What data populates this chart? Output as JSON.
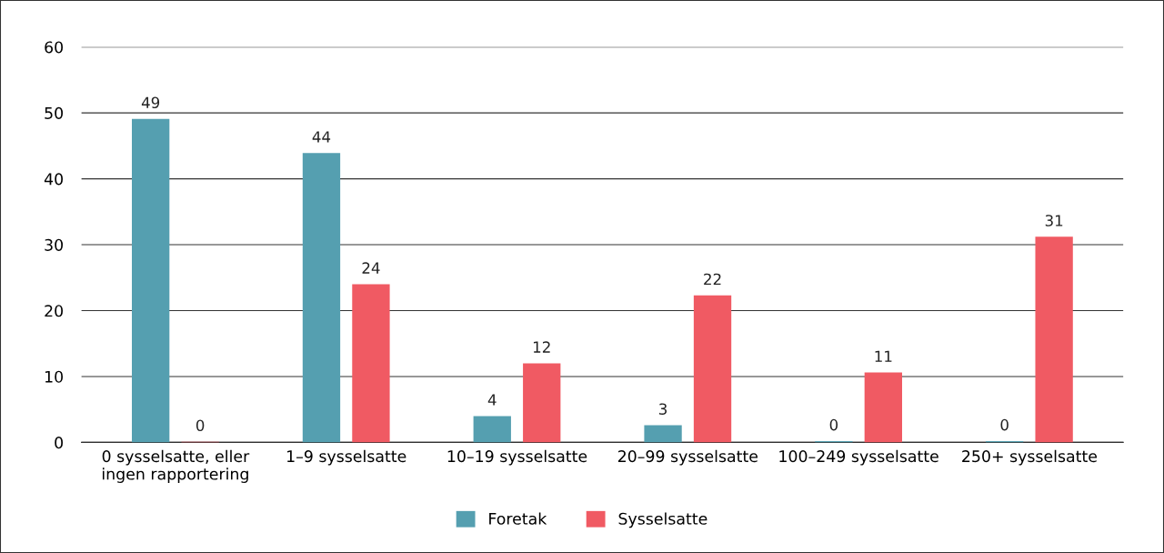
{
  "chart_data": {
    "type": "bar",
    "categories": [
      "0 sysselsatte, eller\ningen rapportering",
      "1–9 sysselsatte",
      "10–19 sysselsatte",
      "20–99 sysselsatte",
      "100–249 sysselsatte",
      "250+ sysselsatte"
    ],
    "series": [
      {
        "name": "Foretak",
        "color": "#559fb0",
        "values": [
          49.1,
          43.9,
          4.0,
          2.6,
          0.2,
          0.2
        ],
        "value_labels": [
          "49",
          "44",
          "4",
          "3",
          "0",
          "0"
        ]
      },
      {
        "name": "Sysselsatte",
        "color": "#f05a63",
        "values": [
          0.1,
          24.0,
          12.0,
          22.3,
          10.6,
          31.2
        ],
        "value_labels": [
          "0",
          "24",
          "12",
          "22",
          "11",
          "31"
        ]
      }
    ],
    "ylim": [
      0,
      60
    ],
    "yticks": [
      0,
      10,
      20,
      30,
      40,
      50,
      60
    ],
    "grid": "y",
    "legend": "bottom"
  }
}
